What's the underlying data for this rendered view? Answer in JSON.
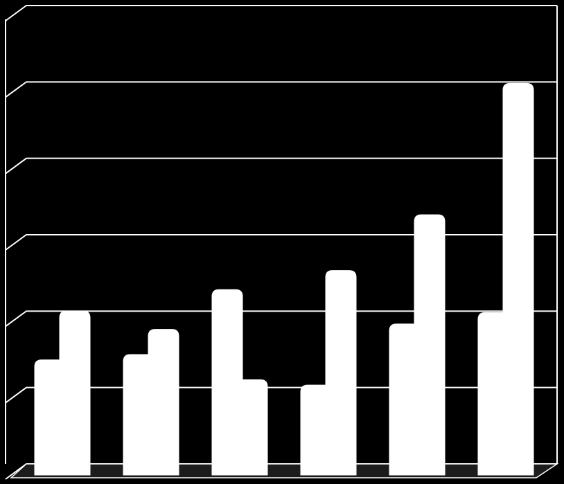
{
  "chart_data": {
    "type": "bar",
    "title": "",
    "xlabel": "",
    "ylabel": "",
    "categories": [
      "",
      "",
      "",
      "",
      "",
      ""
    ],
    "series": [
      {
        "values": [
          1.38,
          1.45,
          2.3,
          1.05,
          1.85,
          2.0
        ]
      },
      {
        "values": [
          2.02,
          1.78,
          1.12,
          2.55,
          3.28,
          5.0
        ]
      }
    ],
    "ylim": [
      0,
      6
    ],
    "yticks": [
      0,
      1,
      2,
      3,
      4,
      5,
      6
    ],
    "grid": true,
    "legend": "none",
    "style": "3d-clustered-columns",
    "colors": {
      "background": "#000000",
      "bars": "#ffffff",
      "grid": "#ffffff",
      "floor": "#1c1c1c",
      "floor_edge": "#ffffff"
    }
  }
}
